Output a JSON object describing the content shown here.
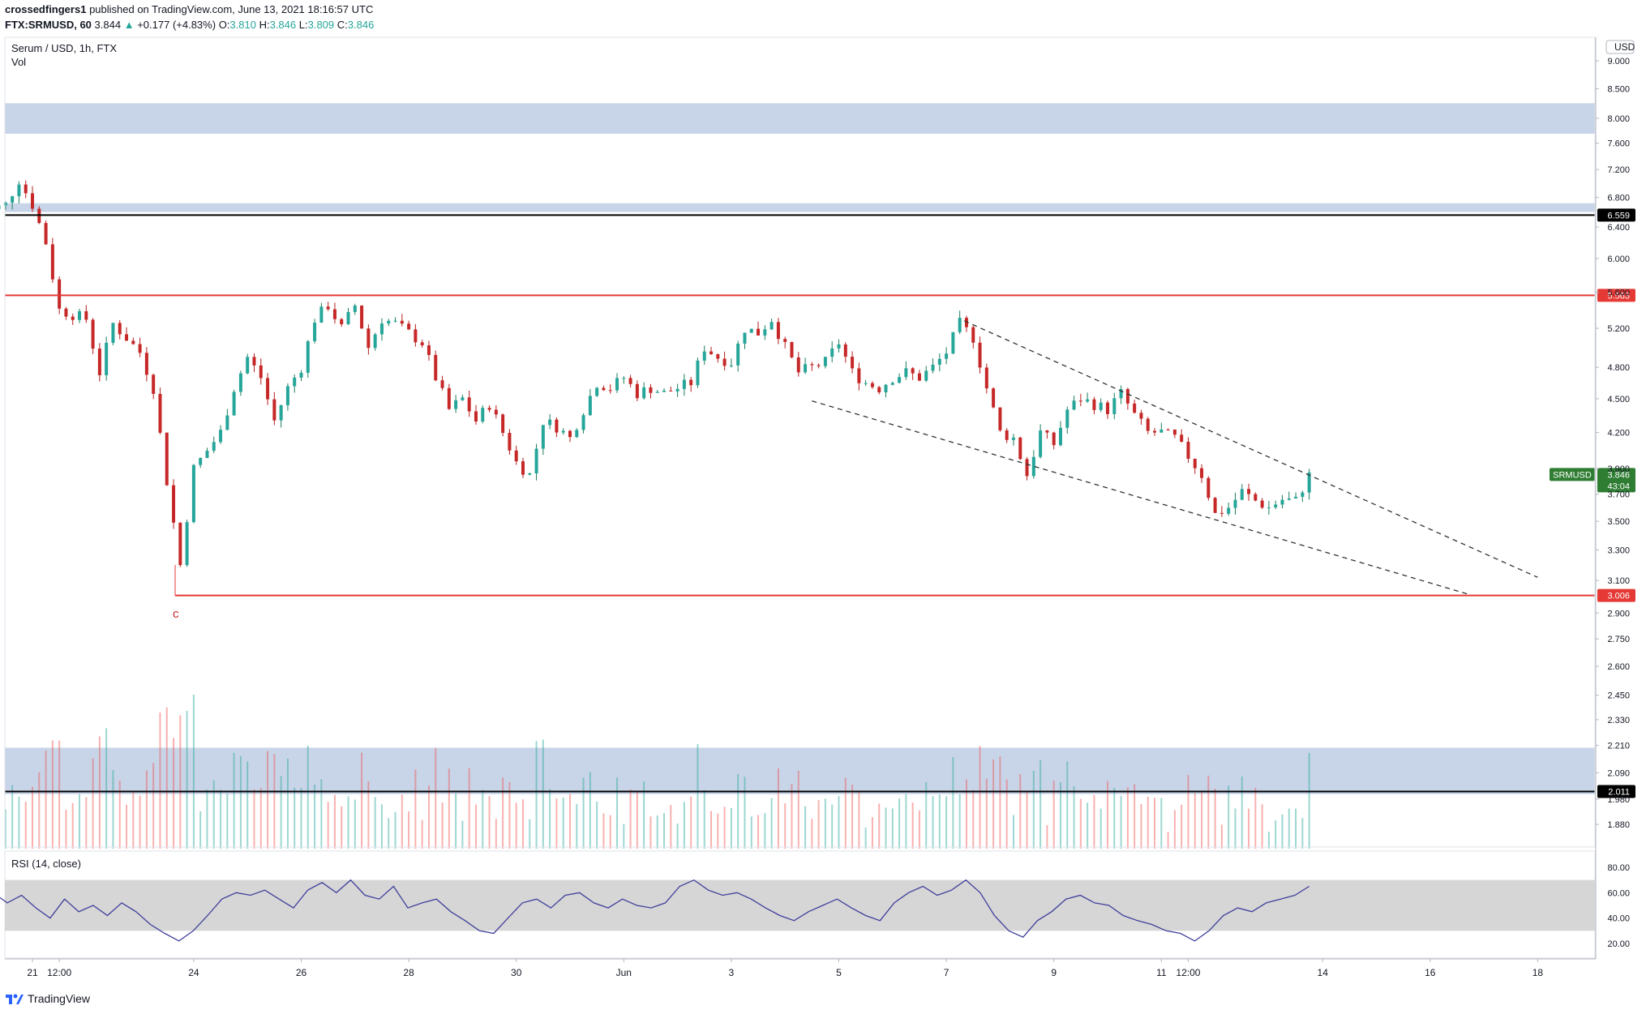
{
  "header": {
    "author": "crossedfingers1",
    "published_text": "published on TradingView.com, June 13, 2021 18:16:57 UTC",
    "symbol_line": "FTX:SRMUSD, 60",
    "last_price": "3.844",
    "change_arrow": "▲",
    "change": "+0.177 (+4.83%)",
    "o_label": "O:",
    "o_value": "3.810",
    "h_label": "H:",
    "h_value": "3.846",
    "l_label": "L:",
    "l_value": "3.809",
    "c_label": "C:",
    "c_value": "3.846"
  },
  "chart_data": {
    "type": "candlestick",
    "title": "Serum / USD, 1h, FTX",
    "volume_label": "Vol",
    "currency": "USD",
    "y_scale": "log",
    "ylim": [
      1.78,
      9.7
    ],
    "price_ticks": [
      "9.000",
      "8.500",
      "8.000",
      "7.600",
      "7.200",
      "6.800",
      "6.400",
      "6.000",
      "5.600",
      "5.200",
      "4.800",
      "4.500",
      "4.200",
      "3.900",
      "3.700",
      "3.500",
      "3.300",
      "3.100",
      "2.900",
      "2.750",
      "2.600",
      "2.450",
      "2.330",
      "2.210",
      "2.090",
      "1.980",
      "1.880"
    ],
    "x_ticks": [
      "21",
      "12:00",
      "24",
      "26",
      "28",
      "30",
      "Jun",
      "3",
      "5",
      "7",
      "9",
      "11",
      "12:00",
      "14",
      "16",
      "18"
    ],
    "price_path": [
      [
        "May 20 00:00",
        6.55
      ],
      [
        "May 20 12:00",
        6.7
      ],
      [
        "May 20 18:00",
        7.05
      ],
      [
        "May 21 00:00",
        6.7
      ],
      [
        "May 21 06:00",
        6.2
      ],
      [
        "May 21 12:00",
        5.4
      ],
      [
        "May 22 00:00",
        5.3
      ],
      [
        "May 22 06:00",
        4.75
      ],
      [
        "May 22 12:00",
        5.25
      ],
      [
        "May 23 00:00",
        4.95
      ],
      [
        "May 23 06:00",
        4.6
      ],
      [
        "May 23 12:00",
        3.8
      ],
      [
        "May 23 18:00",
        3.2
      ],
      [
        "May 24 00:00",
        3.9
      ],
      [
        "May 24 12:00",
        4.2
      ],
      [
        "May 24 18:00",
        4.6
      ],
      [
        "May 25 00:00",
        4.9
      ],
      [
        "May 25 06:00",
        4.7
      ],
      [
        "May 25 12:00",
        4.3
      ],
      [
        "May 25 18:00",
        4.6
      ],
      [
        "May 26 00:00",
        4.8
      ],
      [
        "May 26 06:00",
        5.3
      ],
      [
        "May 26 12:00",
        5.45
      ],
      [
        "May 26 18:00",
        5.2
      ],
      [
        "May 27 00:00",
        5.45
      ],
      [
        "May 27 06:00",
        5.0
      ],
      [
        "May 27 12:00",
        5.3
      ],
      [
        "May 27 18:00",
        5.25
      ],
      [
        "May 28 06:00",
        5.05
      ],
      [
        "May 28 12:00",
        4.7
      ],
      [
        "May 28 18:00",
        4.4
      ],
      [
        "May 29 00:00",
        4.5
      ],
      [
        "May 29 06:00",
        4.3
      ],
      [
        "May 29 12:00",
        4.45
      ],
      [
        "May 29 18:00",
        4.2
      ],
      [
        "May 30 00:00",
        3.95
      ],
      [
        "May 30 06:00",
        3.85
      ],
      [
        "May 30 12:00",
        4.3
      ],
      [
        "May 30 18:00",
        4.25
      ],
      [
        "May 31 00:00",
        4.15
      ],
      [
        "May 31 06:00",
        4.4
      ],
      [
        "May 31 12:00",
        4.65
      ],
      [
        "May 31 18:00",
        4.6
      ],
      [
        "Jun 1 00:00",
        4.7
      ],
      [
        "Jun 1 06:00",
        4.55
      ],
      [
        "Jun 1 12:00",
        4.6
      ],
      [
        "Jun 1 18:00",
        4.55
      ],
      [
        "Jun 2 06:00",
        4.65
      ],
      [
        "Jun 2 12:00",
        5.0
      ],
      [
        "Jun 2 18:00",
        4.9
      ],
      [
        "Jun 3 00:00",
        4.85
      ],
      [
        "Jun 3 06:00",
        5.2
      ],
      [
        "Jun 3 12:00",
        5.15
      ],
      [
        "Jun 3 18:00",
        5.3
      ],
      [
        "Jun 4 00:00",
        5.0
      ],
      [
        "Jun 4 06:00",
        4.75
      ],
      [
        "Jun 4 12:00",
        4.8
      ],
      [
        "Jun 4 18:00",
        4.85
      ],
      [
        "Jun 5 00:00",
        5.05
      ],
      [
        "Jun 5 06:00",
        4.75
      ],
      [
        "Jun 5 12:00",
        4.65
      ],
      [
        "Jun 5 18:00",
        4.6
      ],
      [
        "Jun 6 00:00",
        4.7
      ],
      [
        "Jun 6 06:00",
        4.75
      ],
      [
        "Jun 6 12:00",
        4.7
      ],
      [
        "Jun 6 18:00",
        4.8
      ],
      [
        "Jun 7 00:00",
        4.95
      ],
      [
        "Jun 7 06:00",
        5.25
      ],
      [
        "Jun 7 12:00",
        5.1
      ],
      [
        "Jun 7 18:00",
        4.6
      ],
      [
        "Jun 8 00:00",
        4.2
      ],
      [
        "Jun 8 06:00",
        4.15
      ],
      [
        "Jun 8 12:00",
        3.85
      ],
      [
        "Jun 8 18:00",
        4.2
      ],
      [
        "Jun 9 00:00",
        4.1
      ],
      [
        "Jun 9 06:00",
        4.4
      ],
      [
        "Jun 9 12:00",
        4.5
      ],
      [
        "Jun 9 18:00",
        4.45
      ],
      [
        "Jun 10 00:00",
        4.4
      ],
      [
        "Jun 10 06:00",
        4.55
      ],
      [
        "Jun 10 12:00",
        4.35
      ],
      [
        "Jun 10 18:00",
        4.2
      ],
      [
        "Jun 11 00:00",
        4.2
      ],
      [
        "Jun 11 06:00",
        4.15
      ],
      [
        "Jun 11 12:00",
        4.0
      ],
      [
        "Jun 11 18:00",
        3.85
      ],
      [
        "Jun 12 00:00",
        3.55
      ],
      [
        "Jun 12 06:00",
        3.6
      ],
      [
        "Jun 12 12:00",
        3.72
      ],
      [
        "Jun 12 18:00",
        3.65
      ],
      [
        "Jun 13 00:00",
        3.6
      ],
      [
        "Jun 13 06:00",
        3.66
      ],
      [
        "Jun 13 12:00",
        3.65
      ],
      [
        "Jun 13 18:00",
        3.846
      ]
    ],
    "horizontal_levels": [
      {
        "value": 6.559,
        "label": "6.559",
        "color": "#000000"
      },
      {
        "value": 5.563,
        "label": "5.563",
        "color": "#e53935"
      },
      {
        "value": 3.006,
        "label": "3.006",
        "color": "#e53935"
      },
      {
        "value": 2.011,
        "label": "2.011",
        "color": "#000000"
      }
    ],
    "zones": [
      {
        "from": 7.75,
        "to": 8.25,
        "color": "#c5d3e8"
      },
      {
        "from": 6.6,
        "to": 6.72,
        "color": "#c5d3e8"
      },
      {
        "from": 2.0,
        "to": 2.2,
        "color": "#c5d3e8"
      }
    ],
    "wave_label": "c",
    "trendlines": [
      {
        "from": [
          "Jun 7 08:00",
          5.28
        ],
        "to": [
          "Jun 18 00:00",
          3.12
        ]
      },
      {
        "from": [
          "Jun 4 12:00",
          4.48
        ],
        "to": [
          "Jun 16 18:00",
          3.01
        ]
      }
    ],
    "last_label": {
      "symbol": "SRMUSD",
      "value": "3.846",
      "countdown": "43:04",
      "color": "#2e7d32"
    },
    "rsi": {
      "label": "RSI (14, close)",
      "ticks": [
        "80.00",
        "60.00",
        "40.00",
        "20.00"
      ],
      "band": [
        30,
        70
      ],
      "values": [
        55,
        60,
        52,
        58,
        48,
        40,
        55,
        45,
        50,
        42,
        52,
        45,
        35,
        28,
        22,
        30,
        42,
        55,
        60,
        58,
        62,
        55,
        48,
        62,
        68,
        60,
        70,
        58,
        55,
        65,
        48,
        52,
        55,
        45,
        38,
        30,
        28,
        40,
        52,
        55,
        48,
        58,
        60,
        52,
        48,
        55,
        50,
        48,
        52,
        65,
        70,
        62,
        58,
        60,
        55,
        48,
        42,
        38,
        45,
        50,
        55,
        48,
        42,
        38,
        52,
        60,
        65,
        58,
        62,
        70,
        60,
        42,
        30,
        25,
        38,
        45,
        55,
        58,
        52,
        50,
        42,
        38,
        35,
        30,
        28,
        22,
        30,
        42,
        48,
        45,
        52,
        55,
        58,
        65
      ]
    },
    "volume_color_up": "#26a69a",
    "volume_color_down": "#ef5350"
  },
  "footer": {
    "brand": "TradingView"
  }
}
